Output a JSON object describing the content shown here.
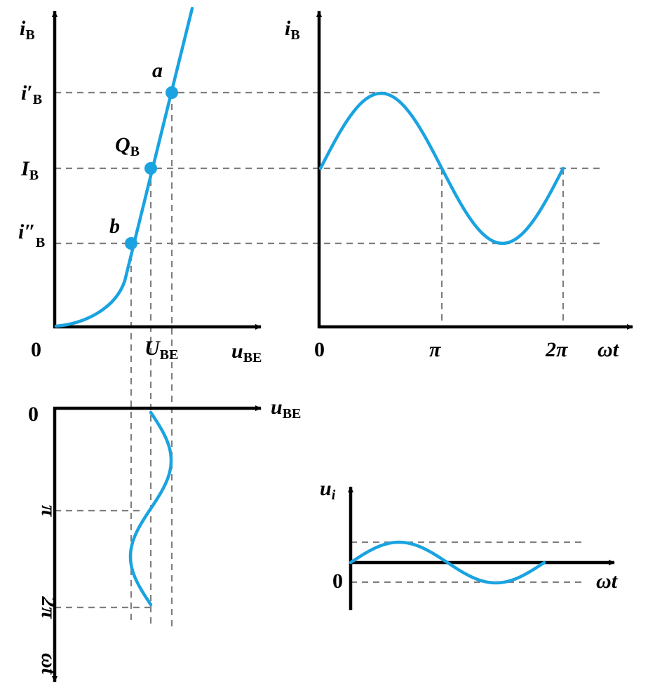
{
  "figure": {
    "topic": "BJT input characteristic: sinusoidal input voltage u_i produces base-voltage and base-current waveforms",
    "colors": {
      "curve": "#1aa3e0",
      "axis": "#000000",
      "dashed": "#7f7f7f",
      "background": "#ffffff"
    },
    "input_characteristic": {
      "y_axis": {
        "symbol": "i",
        "sub": "B"
      },
      "x_axis": {
        "symbol": "u",
        "sub": "BE"
      },
      "origin": "0",
      "operating_point": {
        "symbol": "Q",
        "sub": "B"
      },
      "point_a": "a",
      "point_b": "b",
      "ib_max": {
        "symbol": "i",
        "prime": "′",
        "sub": "B"
      },
      "ib_quiescent": {
        "symbol": "I",
        "sub": "B"
      },
      "ib_min": {
        "symbol": "i",
        "prime": "″",
        "sub": "B"
      },
      "ube_quiescent": {
        "symbol": "U",
        "sub": "BE"
      }
    },
    "base_current_waveform": {
      "y_axis": {
        "symbol": "i",
        "sub": "B"
      },
      "x_axis": "ωt",
      "origin": "0",
      "tick_pi": "π",
      "tick_2pi": "2π"
    },
    "base_voltage_waveform": {
      "x_axis": {
        "symbol": "u",
        "sub": "BE"
      },
      "y_axis": "ωt",
      "origin": "0",
      "tick_pi": "π",
      "tick_2pi": "2π"
    },
    "input_voltage": {
      "y_axis": {
        "symbol": "u",
        "sub": "i"
      },
      "x_axis": "ωt",
      "origin": "0"
    }
  }
}
